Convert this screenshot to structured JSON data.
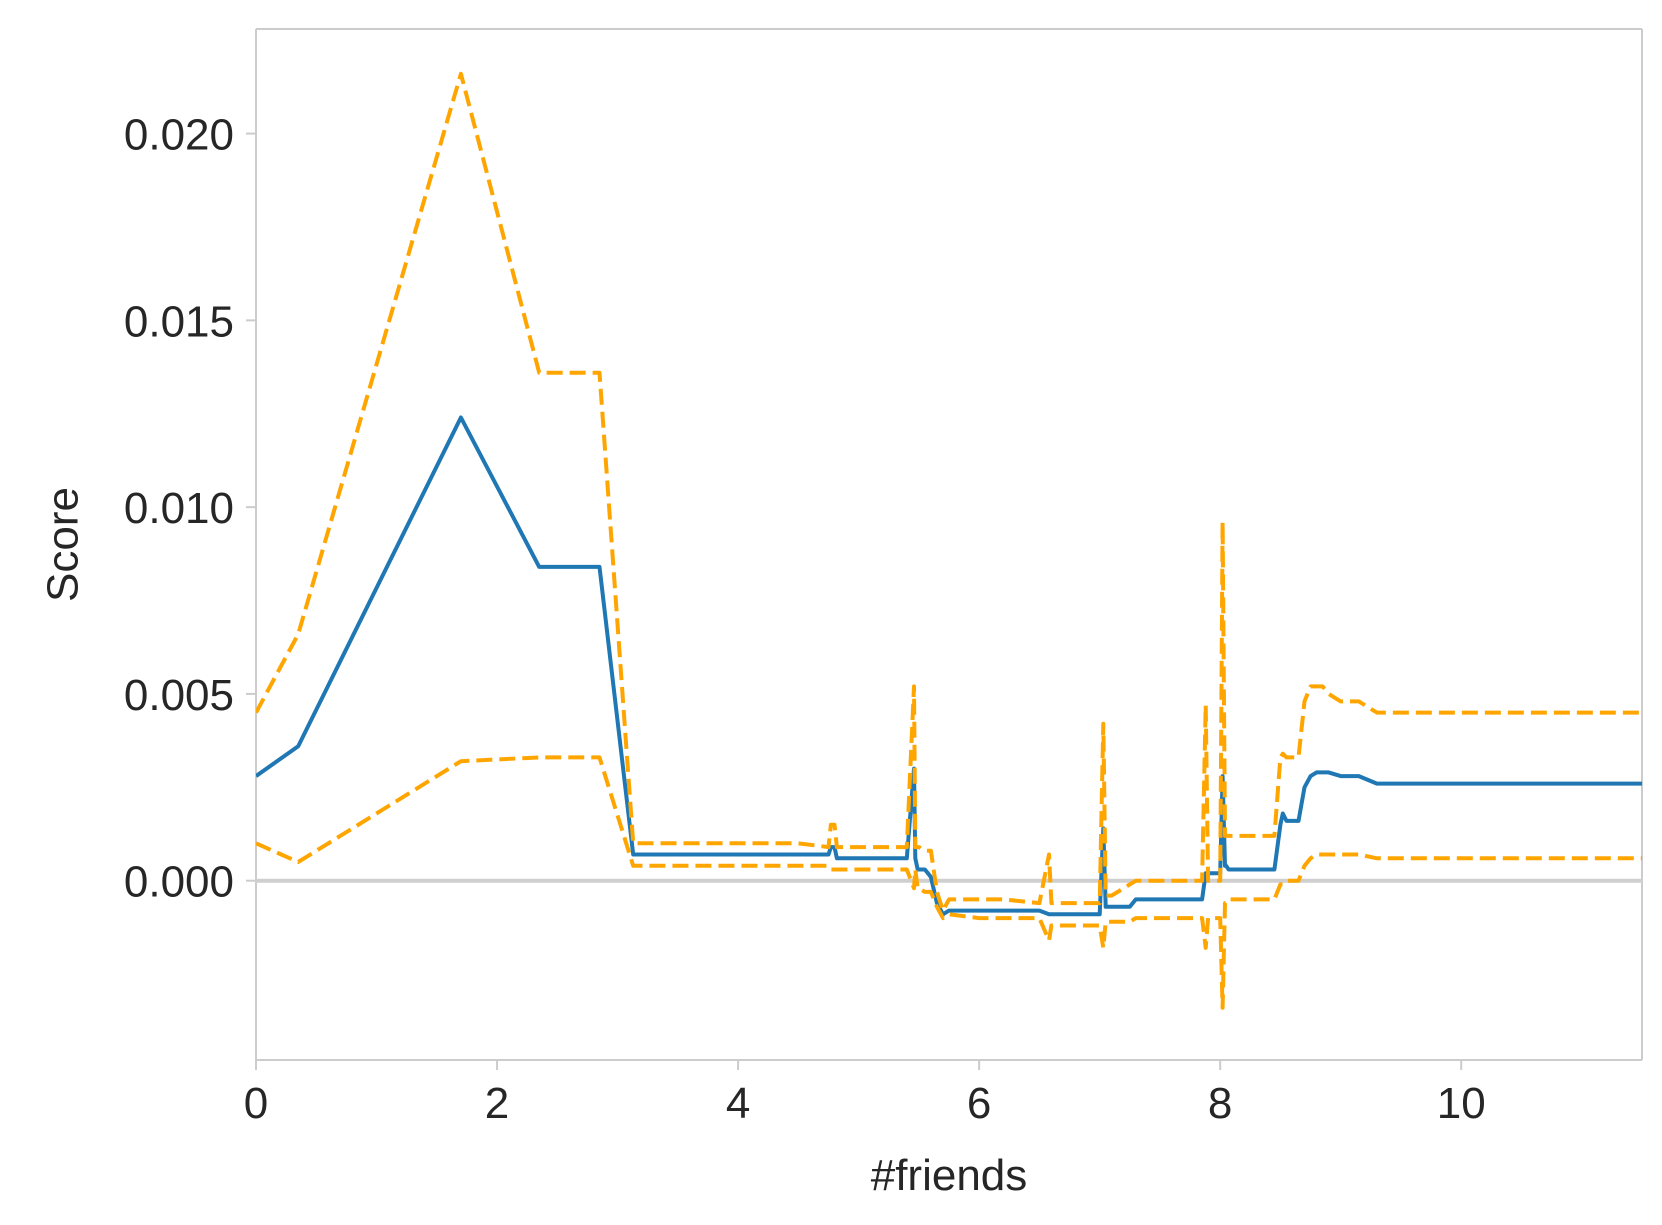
{
  "chart_data": {
    "type": "line",
    "title": "",
    "xlabel": "#friends",
    "ylabel": "Score",
    "xlim": [
      0,
      11.5
    ],
    "ylim": [
      -0.0048,
      0.0228
    ],
    "xticks": [
      0,
      2,
      4,
      6,
      8,
      10
    ],
    "xtick_labels": [
      "0",
      "2",
      "4",
      "6",
      "8",
      "10"
    ],
    "yticks": [
      0.0,
      0.005,
      0.01,
      0.015,
      0.02
    ],
    "ytick_labels": [
      "0.000",
      "0.005",
      "0.010",
      "0.015",
      "0.020"
    ],
    "grid": false,
    "reference_line": {
      "y": 0.0,
      "color": "#cfcfcf"
    },
    "colors": {
      "mean": "#1f77b4",
      "bounds": "#ffa500",
      "axes": "#cccccc",
      "text": "#262626"
    },
    "series": [
      {
        "style": "solid",
        "color": "#1f77b4",
        "x": [
          0,
          0.35,
          1.7,
          2.35,
          2.85,
          3.13,
          3.5,
          4.0,
          4.5,
          4.75,
          4.77,
          4.8,
          4.82,
          5.0,
          5.4,
          5.46,
          5.47,
          5.49,
          5.5,
          5.55,
          5.6,
          5.65,
          5.7,
          5.75,
          6.0,
          6.2,
          6.5,
          6.58,
          6.6,
          6.8,
          7.0,
          7.03,
          7.05,
          7.07,
          7.1,
          7.25,
          7.3,
          7.5,
          7.85,
          7.88,
          7.9,
          8.0,
          8.02,
          8.04,
          8.05,
          8.07,
          8.1,
          8.2,
          8.45,
          8.5,
          8.52,
          8.55,
          8.6,
          8.65,
          8.7,
          8.75,
          8.8,
          8.85,
          8.9,
          9.0,
          9.15,
          9.3,
          9.55,
          10.0,
          11.5
        ],
        "y": [
          0.0028,
          0.0036,
          0.0124,
          0.0084,
          0.0084,
          0.0007,
          0.0007,
          0.0007,
          0.0007,
          0.0007,
          0.0009,
          0.0009,
          0.0006,
          0.0006,
          0.0006,
          0.003,
          0.0006,
          0.0003,
          0.0003,
          0.0003,
          0.0001,
          -0.0006,
          -0.0009,
          -0.0008,
          -0.0008,
          -0.0008,
          -0.0008,
          -0.0009,
          -0.0009,
          -0.0009,
          -0.0009,
          0.0014,
          -0.0007,
          -0.0007,
          -0.0007,
          -0.0007,
          -0.0005,
          -0.0005,
          -0.0005,
          0.0002,
          0.0002,
          0.0002,
          0.0028,
          0.0004,
          0.0004,
          0.0003,
          0.0003,
          0.0003,
          0.0003,
          0.0015,
          0.0018,
          0.0016,
          0.0016,
          0.0016,
          0.0025,
          0.0028,
          0.0029,
          0.0029,
          0.0029,
          0.0028,
          0.0028,
          0.0026,
          0.0026,
          0.0026,
          0.0026
        ]
      },
      {
        "style": "dashed",
        "color": "#ffa500",
        "x": [
          0,
          0.35,
          1.7,
          2.35,
          2.85,
          3.13,
          3.5,
          4.0,
          4.5,
          4.75,
          4.77,
          4.8,
          4.82,
          5.0,
          5.4,
          5.46,
          5.47,
          5.49,
          5.5,
          5.55,
          5.6,
          5.65,
          5.7,
          5.75,
          6.0,
          6.2,
          6.5,
          6.58,
          6.6,
          6.8,
          7.0,
          7.03,
          7.05,
          7.07,
          7.1,
          7.25,
          7.3,
          7.5,
          7.85,
          7.88,
          7.9,
          8.0,
          8.02,
          8.04,
          8.05,
          8.07,
          8.1,
          8.2,
          8.45,
          8.5,
          8.52,
          8.55,
          8.6,
          8.65,
          8.7,
          8.75,
          8.8,
          8.85,
          8.9,
          9.0,
          9.15,
          9.3,
          9.55,
          10.0,
          11.5
        ],
        "y": [
          0.0045,
          0.0066,
          0.0216,
          0.0136,
          0.0136,
          0.001,
          0.001,
          0.001,
          0.001,
          0.0009,
          0.0015,
          0.0015,
          0.0009,
          0.0009,
          0.0009,
          0.0052,
          0.0009,
          0.0009,
          0.0009,
          0.0008,
          0.0008,
          -0.0003,
          -0.0008,
          -0.0005,
          -0.0005,
          -0.0005,
          -0.0006,
          0.0007,
          -0.0006,
          -0.0006,
          -0.0006,
          0.0042,
          -0.0004,
          -0.0004,
          -0.0004,
          -0.0001,
          0.0,
          0.0,
          0.0,
          0.0047,
          0.0,
          0.0,
          0.0096,
          0.0012,
          0.0012,
          0.0012,
          0.0012,
          0.0012,
          0.0012,
          0.0033,
          0.0034,
          0.0033,
          0.0033,
          0.0033,
          0.0048,
          0.0052,
          0.0052,
          0.0052,
          0.005,
          0.0048,
          0.0048,
          0.0045,
          0.0045,
          0.0045,
          0.0045
        ]
      },
      {
        "style": "dashed",
        "color": "#ffa500",
        "x": [
          0,
          0.35,
          1.7,
          2.35,
          2.85,
          3.13,
          3.5,
          4.0,
          4.5,
          4.75,
          4.77,
          4.8,
          4.82,
          5.0,
          5.4,
          5.46,
          5.47,
          5.49,
          5.5,
          5.55,
          5.6,
          5.65,
          5.7,
          5.75,
          6.0,
          6.2,
          6.5,
          6.58,
          6.6,
          6.8,
          7.0,
          7.03,
          7.05,
          7.07,
          7.1,
          7.25,
          7.3,
          7.5,
          7.85,
          7.88,
          7.9,
          8.0,
          8.02,
          8.04,
          8.05,
          8.07,
          8.1,
          8.2,
          8.45,
          8.5,
          8.52,
          8.55,
          8.6,
          8.65,
          8.7,
          8.75,
          8.8,
          8.85,
          8.9,
          9.0,
          9.15,
          9.3,
          9.55,
          10.0,
          11.5
        ],
        "y": [
          0.001,
          0.0005,
          0.0032,
          0.0033,
          0.0033,
          0.0004,
          0.0004,
          0.0004,
          0.0004,
          0.0004,
          0.0003,
          0.0003,
          0.0003,
          0.0003,
          0.0003,
          -0.0002,
          0.0003,
          -0.0002,
          -0.0002,
          -0.0003,
          -0.0003,
          -0.0007,
          -0.001,
          -0.0009,
          -0.001,
          -0.001,
          -0.001,
          -0.0016,
          -0.0012,
          -0.0012,
          -0.0012,
          -0.0018,
          -0.0011,
          -0.0011,
          -0.0011,
          -0.0011,
          -0.001,
          -0.001,
          -0.001,
          -0.0018,
          -0.001,
          -0.001,
          -0.0034,
          -0.0006,
          -0.0006,
          -0.0005,
          -0.0005,
          -0.0005,
          -0.0005,
          -0.0001,
          -0.0001,
          0.0,
          0.0,
          0.0,
          0.0004,
          0.0006,
          0.0007,
          0.0007,
          0.0007,
          0.0007,
          0.0007,
          0.0006,
          0.0006,
          0.0006,
          0.0006
        ]
      }
    ]
  }
}
